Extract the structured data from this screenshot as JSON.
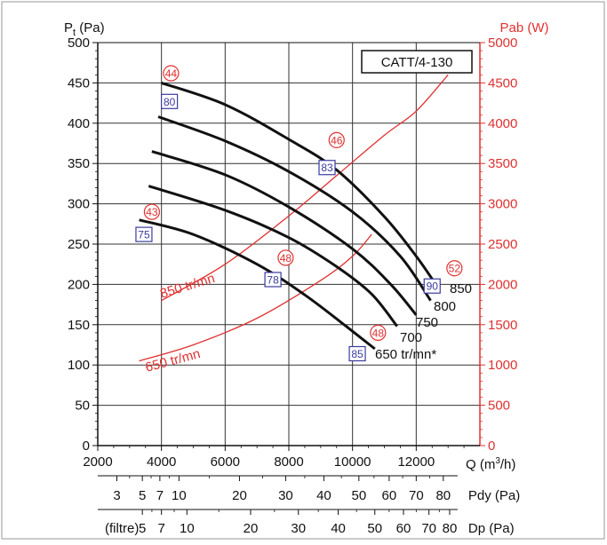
{
  "chart_data": {
    "type": "line",
    "model_label": "CATT/4-130",
    "x_axis": {
      "label": "Q (m³/h)",
      "range": [
        2000,
        14000
      ],
      "ticks": [
        2000,
        4000,
        6000,
        8000,
        10000,
        12000
      ]
    },
    "y_left": {
      "label": "Pt (Pa)",
      "range": [
        0,
        500
      ],
      "ticks": [
        0,
        50,
        100,
        150,
        200,
        250,
        300,
        350,
        400,
        450,
        500
      ]
    },
    "y_right": {
      "label": "Pab (W)",
      "range": [
        0,
        5000
      ],
      "ticks": [
        0,
        500,
        1000,
        1500,
        2000,
        2500,
        3000,
        3500,
        4000,
        4500,
        5000
      ],
      "color": "#e03030"
    },
    "pressure_curves": [
      {
        "name": "850",
        "points": [
          [
            4000,
            450
          ],
          [
            6000,
            423
          ],
          [
            8000,
            380
          ],
          [
            9500,
            342
          ],
          [
            11000,
            284
          ],
          [
            12000,
            235
          ],
          [
            12700,
            195
          ]
        ]
      },
      {
        "name": "800",
        "points": [
          [
            3900,
            408
          ],
          [
            6000,
            378
          ],
          [
            8000,
            340
          ],
          [
            10000,
            290
          ],
          [
            11500,
            235
          ],
          [
            12450,
            180
          ]
        ]
      },
      {
        "name": "750",
        "points": [
          [
            3700,
            365
          ],
          [
            6000,
            336
          ],
          [
            8000,
            296
          ],
          [
            10000,
            244
          ],
          [
            11200,
            200
          ],
          [
            12000,
            162
          ]
        ]
      },
      {
        "name": "700",
        "points": [
          [
            3600,
            322
          ],
          [
            6000,
            292
          ],
          [
            8000,
            258
          ],
          [
            9500,
            222
          ],
          [
            10600,
            188
          ],
          [
            11400,
            148
          ]
        ]
      },
      {
        "name": "650 tr/mn*",
        "points": [
          [
            3300,
            280
          ],
          [
            5000,
            262
          ],
          [
            7000,
            225
          ],
          [
            8500,
            187
          ],
          [
            9800,
            148
          ],
          [
            10700,
            120
          ]
        ]
      }
    ],
    "power_curves": [
      {
        "name": "850 tr/mn",
        "points": [
          [
            4000,
            1800
          ],
          [
            6000,
            2250
          ],
          [
            8000,
            2850
          ],
          [
            9500,
            3350
          ],
          [
            11000,
            3850
          ],
          [
            12000,
            4150
          ],
          [
            13000,
            4600
          ]
        ]
      },
      {
        "name": "650 tr/mn",
        "points": [
          [
            3300,
            1050
          ],
          [
            5000,
            1250
          ],
          [
            7000,
            1580
          ],
          [
            9000,
            2050
          ],
          [
            10000,
            2350
          ],
          [
            10600,
            2620
          ]
        ]
      }
    ],
    "curve_end_labels": [
      "850",
      "800",
      "750",
      "700",
      "650 tr/mn*"
    ],
    "noise_markers": [
      {
        "kind": "circle",
        "value": "44",
        "x": 4300,
        "y": 462
      },
      {
        "kind": "circle",
        "value": "46",
        "x": 9500,
        "y": 379
      },
      {
        "kind": "circle",
        "value": "43",
        "x": 3700,
        "y": 290
      },
      {
        "kind": "circle",
        "value": "48",
        "x": 7900,
        "y": 233
      },
      {
        "kind": "circle",
        "value": "48",
        "x": 10800,
        "y": 140
      },
      {
        "kind": "circle",
        "value": "52",
        "x": 13200,
        "y": 220
      },
      {
        "kind": "square",
        "value": "80",
        "x": 4250,
        "y": 427
      },
      {
        "kind": "square",
        "value": "83",
        "x": 9200,
        "y": 345
      },
      {
        "kind": "square",
        "value": "75",
        "x": 3450,
        "y": 262
      },
      {
        "kind": "square",
        "value": "78",
        "x": 7500,
        "y": 206
      },
      {
        "kind": "square",
        "value": "85",
        "x": 10150,
        "y": 114
      },
      {
        "kind": "square",
        "value": "90",
        "x": 12500,
        "y": 198
      }
    ],
    "sub_axes": [
      {
        "label": "Pdy (Pa)",
        "ticks": [
          {
            "label": "3",
            "x": 2600
          },
          {
            "label": "5",
            "x": 3400
          },
          {
            "label": "7",
            "x": 3950
          },
          {
            "label": "10",
            "x": 4550
          },
          {
            "label": "20",
            "x": 6450
          },
          {
            "label": "30",
            "x": 7900
          },
          {
            "label": "40",
            "x": 9100
          },
          {
            "label": "50",
            "x": 10200
          },
          {
            "label": "60",
            "x": 11150
          },
          {
            "label": "70",
            "x": 12000
          },
          {
            "label": "80",
            "x": 12850
          }
        ]
      },
      {
        "label": "Dp (Pa)",
        "prefix": "(filtre)",
        "ticks": [
          {
            "label": "5",
            "x": 3400
          },
          {
            "label": "7",
            "x": 4000
          },
          {
            "label": "10",
            "x": 4800
          },
          {
            "label": "20",
            "x": 6800
          },
          {
            "label": "30",
            "x": 8300
          },
          {
            "label": "40",
            "x": 9550
          },
          {
            "label": "50",
            "x": 10700
          },
          {
            "label": "60",
            "x": 11600
          },
          {
            "label": "70",
            "x": 12400
          },
          {
            "label": "80",
            "x": 13050
          }
        ]
      }
    ]
  }
}
